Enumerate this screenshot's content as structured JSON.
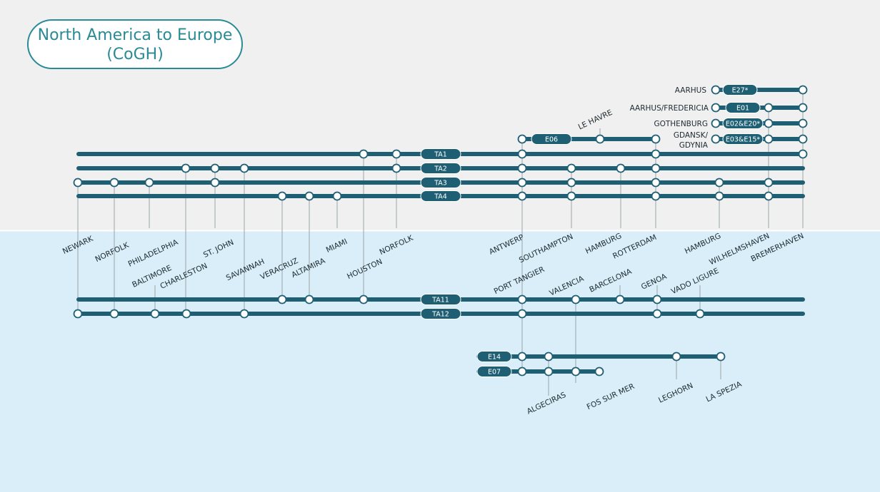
{
  "title": {
    "lines": [
      "North America to Europe",
      "(CoGH)"
    ]
  },
  "services": [
    {
      "label": "TA1"
    },
    {
      "label": "TA2"
    },
    {
      "label": "TA3"
    },
    {
      "label": "TA4"
    },
    {
      "label": "TA11"
    },
    {
      "label": "TA12"
    },
    {
      "label": "E06"
    },
    {
      "label": "E27*"
    },
    {
      "label": "E01"
    },
    {
      "label": "E02&E20*"
    },
    {
      "label": "E03&E15*"
    },
    {
      "label": "E14"
    },
    {
      "label": "E07"
    }
  ],
  "ports": [
    {
      "name": "NEWARK"
    },
    {
      "name": "NORFOLK"
    },
    {
      "name": "PHILADELPHIA"
    },
    {
      "name": "BALTIMORE"
    },
    {
      "name": "CHARLESTON"
    },
    {
      "name": "ST. JOHN"
    },
    {
      "name": "SAVANNAH"
    },
    {
      "name": "VERACRUZ"
    },
    {
      "name": "ALTAMIRA"
    },
    {
      "name": "MIAMI"
    },
    {
      "name": "HOUSTON"
    },
    {
      "name": "NORFOLK"
    },
    {
      "name": "ANTWERP"
    },
    {
      "name": "PORT TANGIER"
    },
    {
      "name": "SOUTHAMPTON"
    },
    {
      "name": "VALENCIA"
    },
    {
      "name": "BARCELONA"
    },
    {
      "name": "HAMBURG"
    },
    {
      "name": "ROTTERDAM"
    },
    {
      "name": "GENOA"
    },
    {
      "name": "VADO LIGURE"
    },
    {
      "name": "HAMBURG"
    },
    {
      "name": "WILHELMSHAVEN"
    },
    {
      "name": "BREMERHAVEN"
    },
    {
      "name": "LE HAVRE"
    },
    {
      "name": "ALGECIRAS"
    },
    {
      "name": "FOS SUR MER"
    },
    {
      "name": "LEGHORN"
    },
    {
      "name": "LA SPEZIA"
    }
  ],
  "hubs": [
    {
      "lines": [
        "AARHUS"
      ]
    },
    {
      "lines": [
        "AARHUS/FREDERICIA"
      ]
    },
    {
      "lines": [
        "GOTHENBURG"
      ]
    },
    {
      "lines": [
        "GDANSK/",
        "GDYNIA"
      ]
    }
  ]
}
